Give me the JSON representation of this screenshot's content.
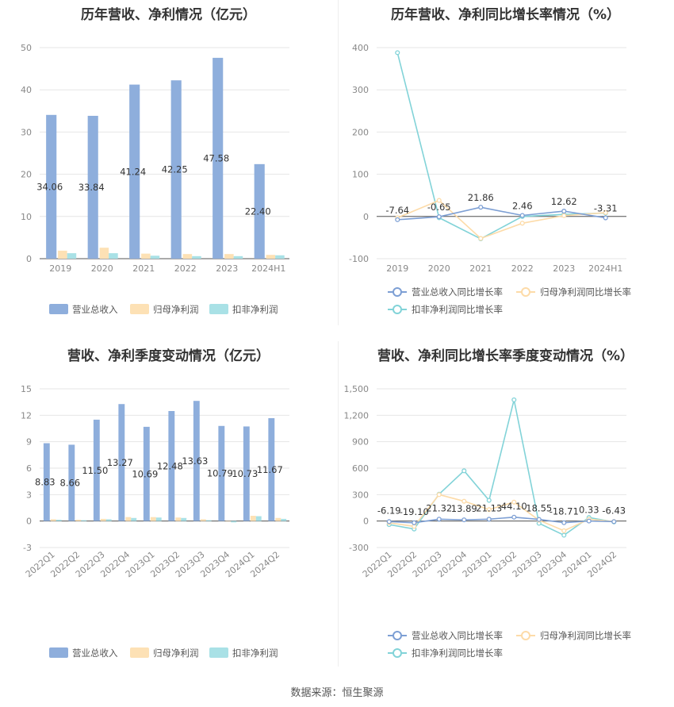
{
  "source_label": "数据来源：恒生聚源",
  "chart_data": [
    {
      "id": "annual-amount",
      "type": "bar",
      "title": "历年营收、净利情况（亿元）",
      "categories": [
        "2019",
        "2020",
        "2021",
        "2022",
        "2023",
        "2024H1"
      ],
      "ylim": [
        0,
        50
      ],
      "yticks": [
        0,
        10,
        20,
        30,
        40,
        50
      ],
      "ytick_labels": [
        "0",
        "10",
        "20",
        "30",
        "40",
        "50"
      ],
      "xlabel_rotate": false,
      "label_series": 0,
      "series": [
        {
          "name": "营业总收入",
          "color": "#8eaedc",
          "values": [
            34.06,
            33.84,
            41.24,
            42.25,
            47.58,
            22.4
          ],
          "labels": [
            "34.06",
            "33.84",
            "41.24",
            "42.25",
            "47.58",
            "22.40"
          ]
        },
        {
          "name": "归母净利润",
          "color": "#fde1b5",
          "values": [
            1.9,
            2.6,
            1.2,
            1.1,
            1.1,
            0.9
          ]
        },
        {
          "name": "扣非净利润",
          "color": "#a9e1e6",
          "values": [
            1.3,
            1.3,
            0.7,
            0.6,
            0.6,
            0.8
          ]
        }
      ],
      "legend": "bottom",
      "grid": true
    },
    {
      "id": "annual-growth",
      "type": "line",
      "title": "历年营收、净利同比增长率情况（%）",
      "categories": [
        "2019",
        "2020",
        "2021",
        "2022",
        "2023",
        "2024H1"
      ],
      "ylim": [
        -100,
        400
      ],
      "yticks": [
        -100,
        0,
        100,
        200,
        300,
        400
      ],
      "ytick_labels": [
        "-100",
        "0",
        "100",
        "200",
        "300",
        "400"
      ],
      "xlabel_rotate": false,
      "label_series": 0,
      "series": [
        {
          "name": "营业总收入同比增长率",
          "color": "#7d9fd4",
          "values": [
            -7.64,
            -0.65,
            21.86,
            2.46,
            12.62,
            -3.31
          ],
          "labels": [
            "-7.64",
            "-0.65",
            "21.86",
            "2.46",
            "12.62",
            "-3.31"
          ]
        },
        {
          "name": "归母净利润同比增长率",
          "color": "#fddba8",
          "values": [
            -3,
            38,
            -52,
            -16,
            2,
            9
          ]
        },
        {
          "name": "扣非净利润同比增长率",
          "color": "#82d3d8",
          "values": [
            388,
            -3,
            -53,
            0,
            5,
            8
          ]
        }
      ],
      "legend": "bottom",
      "grid": true
    },
    {
      "id": "quarterly-amount",
      "type": "bar",
      "title": "营收、净利季度变动情况（亿元）",
      "categories": [
        "2022Q1",
        "2022Q2",
        "2022Q3",
        "2022Q4",
        "2023Q1",
        "2023Q2",
        "2023Q3",
        "2023Q4",
        "2024Q1",
        "2024Q2"
      ],
      "ylim": [
        -3,
        15
      ],
      "yticks": [
        -3,
        0,
        3,
        6,
        9,
        12,
        15
      ],
      "ytick_labels": [
        "-3",
        "0",
        "3",
        "6",
        "9",
        "12",
        "15"
      ],
      "xlabel_rotate": true,
      "label_series": 0,
      "series": [
        {
          "name": "营业总收入",
          "color": "#8eaedc",
          "values": [
            8.83,
            8.66,
            11.5,
            13.27,
            10.69,
            12.48,
            13.63,
            10.79,
            10.73,
            11.67
          ],
          "labels": [
            "8.83",
            "8.66",
            "11.50",
            "13.27",
            "10.69",
            "12.48",
            "13.63",
            "10.79",
            "10.73",
            "11.67"
          ]
        },
        {
          "name": "归母净利润",
          "color": "#fde1b5",
          "values": [
            0.2,
            0.15,
            0.25,
            0.45,
            0.45,
            0.4,
            0.2,
            -0.05,
            0.6,
            0.35
          ]
        },
        {
          "name": "扣非净利润",
          "color": "#a9e1e6",
          "values": [
            0.15,
            0.1,
            0.2,
            0.35,
            0.4,
            0.35,
            0.1,
            -0.15,
            0.55,
            0.25
          ]
        }
      ],
      "legend": "bottom",
      "grid": true
    },
    {
      "id": "quarterly-growth",
      "type": "line",
      "title": "营收、净利同比增长率季度变动情况（%）",
      "categories": [
        "2022Q1",
        "2022Q2",
        "2022Q3",
        "2022Q4",
        "2023Q1",
        "2023Q2",
        "2023Q3",
        "2023Q4",
        "2024Q1",
        "2024Q2"
      ],
      "ylim": [
        -300,
        1500
      ],
      "yticks": [
        -300,
        0,
        300,
        600,
        900,
        1200,
        1500
      ],
      "ytick_labels": [
        "-300",
        "0",
        "300",
        "600",
        "900",
        "1,200",
        "1,500"
      ],
      "xlabel_rotate": true,
      "label_series": 0,
      "series": [
        {
          "name": "营业总收入同比增长率",
          "color": "#7d9fd4",
          "values": [
            -6.19,
            -19.1,
            21.32,
            13.89,
            21.13,
            44.1,
            18.55,
            -18.71,
            0.33,
            -6.43
          ],
          "labels": [
            "-6.19",
            "-19.10",
            "21.32",
            "13.89",
            "21.13",
            "44.10",
            "18.55",
            "-18.71",
            "0.33",
            "-6.43"
          ]
        },
        {
          "name": "归母净利润同比增长率",
          "color": "#fddba8",
          "values": [
            -20,
            -60,
            300,
            225,
            130,
            215,
            10,
            -110,
            20,
            -5
          ]
        },
        {
          "name": "扣非净利润同比增长率",
          "color": "#82d3d8",
          "values": [
            -40,
            -90,
            305,
            570,
            235,
            1375,
            -25,
            -160,
            40,
            -10
          ]
        }
      ],
      "legend": "bottom",
      "grid": true
    }
  ]
}
